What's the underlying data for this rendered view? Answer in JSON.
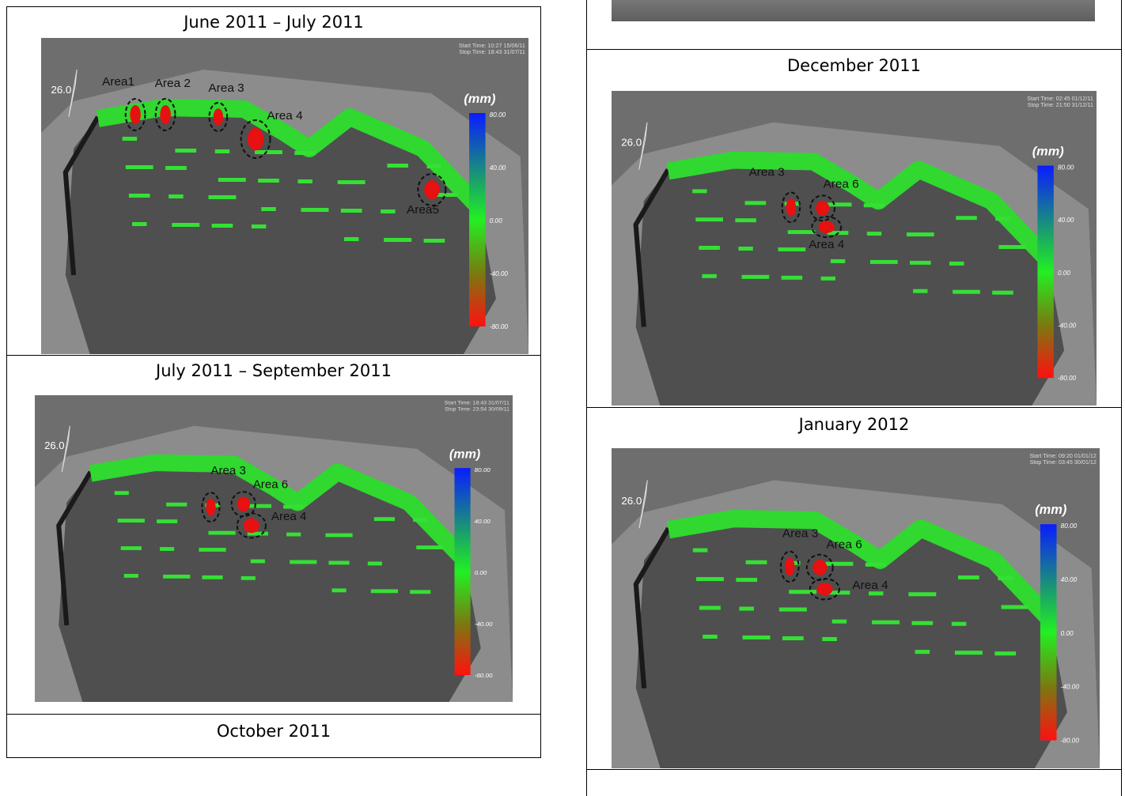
{
  "left_column": {
    "panels": [
      {
        "caption": "June 2011 – July 2011",
        "image": {
          "start_time": "Start Time: 10:27 15/06/11",
          "stop_time": "Stop Time: 18:43 31/07/11",
          "axis_label": "26.0",
          "unit": "(mm)",
          "scale": [
            "80.00",
            "40.00",
            "0.00",
            "-40.00",
            "-80.00"
          ],
          "areas": [
            "Area1",
            "Area 2",
            "Area 3",
            "Area 4",
            "Area5"
          ]
        }
      },
      {
        "caption": "July 2011 – September 2011",
        "image": {
          "start_time": "Start Time: 18:43 31/07/11",
          "stop_time": "Stop Time: 23:54 30/09/11",
          "axis_label": "26.0",
          "unit": "(mm)",
          "scale": [
            "80.00",
            "40.00",
            "0.00",
            "-40.00",
            "-80.00"
          ],
          "areas": [
            "Area 3",
            "Area 6",
            "Area 4"
          ]
        }
      },
      {
        "caption": "October 2011"
      }
    ]
  },
  "right_column": {
    "panels": [
      {
        "caption": "December 2011",
        "image": {
          "start_time": "Start Time: 02:45 01/12/11",
          "stop_time": "Stop Time: 21:50 31/12/11",
          "axis_label": "26.0",
          "unit": "(mm)",
          "scale": [
            "80.00",
            "40.00",
            "0.00",
            "-40.00",
            "-80.00"
          ],
          "areas": [
            "Area 3",
            "Area 6",
            "Area 4"
          ]
        }
      },
      {
        "caption": "January 2012",
        "image": {
          "start_time": "Start Time: 09:20 01/01/12",
          "stop_time": "Stop Time: 03:45 30/01/12",
          "axis_label": "26.0",
          "unit": "(mm)",
          "scale": [
            "80.00",
            "40.00",
            "0.00",
            "-40.00",
            "-80.00"
          ],
          "areas": [
            "Area 3",
            "Area 6",
            "Area 4"
          ]
        }
      }
    ]
  }
}
